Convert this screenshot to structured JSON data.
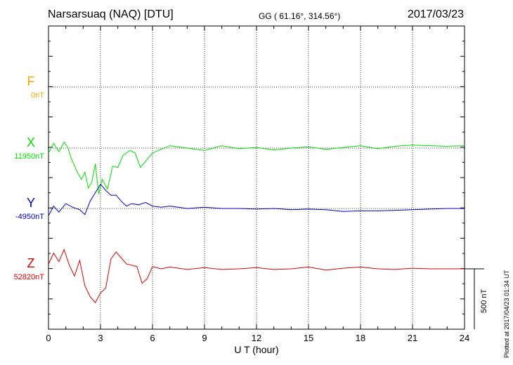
{
  "header": {
    "station": "Narsarsuaq (NAQ)  [DTU]",
    "coords": "GG ( 61.16°, 314.56°)",
    "date": "2017/03/23"
  },
  "plot_note": "Plotted at 2017/04/23 01:34 UT",
  "colors": {
    "F": "#ffa500",
    "X": "#00dd00",
    "Y": "#0000cc",
    "Z": "#dd0000",
    "grid": "#000000"
  },
  "chart_data": {
    "type": "line",
    "title": "Narsarsuaq (NAQ)  [DTU]",
    "xlabel": "U T (hour)",
    "xlim": [
      0,
      24
    ],
    "xticks": [
      "0",
      "3",
      "6",
      "9",
      "12",
      "15",
      "18",
      "21",
      "24"
    ],
    "scale_bar": "500 nT",
    "grid": true,
    "series": [
      {
        "name": "F",
        "baseline": "0nT",
        "color": "#ffa500",
        "x": [],
        "values": []
      },
      {
        "name": "X",
        "baseline": "11950nT",
        "color": "#00dd00",
        "x": [
          0,
          0.3,
          0.6,
          0.9,
          1.1,
          1.3,
          1.6,
          1.9,
          2.1,
          2.3,
          2.5,
          2.7,
          2.9,
          3.1,
          3.4,
          3.7,
          4.0,
          4.3,
          4.7,
          5.0,
          5.3,
          5.6,
          6.0,
          6.5,
          7.0,
          8.0,
          9.0,
          10.0,
          11.0,
          12.0,
          13.0,
          14.0,
          15.0,
          16.0,
          17.0,
          18.0,
          19.0,
          20.0,
          21.0,
          22.0,
          23.0,
          24.0
        ],
        "values": [
          -40,
          40,
          -30,
          50,
          10,
          -80,
          -180,
          -260,
          -200,
          -330,
          -280,
          -130,
          -380,
          -260,
          -340,
          -150,
          -160,
          -60,
          -20,
          -40,
          -160,
          -110,
          -40,
          -10,
          20,
          0,
          -20,
          20,
          -5,
          5,
          -15,
          0,
          10,
          -10,
          5,
          20,
          -5,
          15,
          25,
          20,
          15,
          20
        ]
      },
      {
        "name": "Y",
        "baseline": "-4950nT",
        "color": "#0000cc",
        "x": [
          0,
          0.3,
          0.6,
          1.0,
          1.4,
          1.8,
          2.1,
          2.4,
          2.7,
          3.0,
          3.3,
          3.6,
          3.9,
          4.2,
          4.5,
          4.8,
          5.2,
          5.6,
          6.0,
          6.5,
          7.0,
          8.0,
          9.0,
          10.0,
          11.0,
          12.0,
          13.0,
          14.0,
          15.0,
          16.0,
          17.0,
          18.0,
          19.0,
          20.0,
          21.0,
          22.0,
          23.0,
          24.0
        ],
        "values": [
          -60,
          20,
          -30,
          40,
          10,
          -10,
          -50,
          60,
          130,
          200,
          150,
          110,
          110,
          60,
          20,
          40,
          30,
          50,
          20,
          10,
          20,
          0,
          10,
          0,
          0,
          -5,
          0,
          -10,
          -5,
          -10,
          -25,
          -20,
          -20,
          -15,
          -10,
          -5,
          0,
          0
        ]
      },
      {
        "name": "Z",
        "baseline": "52820nT",
        "color": "#dd0000",
        "x": [
          0,
          0.3,
          0.6,
          0.9,
          1.2,
          1.5,
          1.8,
          2.1,
          2.4,
          2.7,
          3.0,
          3.3,
          3.6,
          3.9,
          4.2,
          4.5,
          4.8,
          5.1,
          5.4,
          5.7,
          6.0,
          6.5,
          7.0,
          8.0,
          9.0,
          10.0,
          11.0,
          12.0,
          13.0,
          14.0,
          15.0,
          16.0,
          17.0,
          18.0,
          19.0,
          20.0,
          21.0,
          22.0,
          23.0,
          24.0
        ],
        "values": [
          40,
          130,
          60,
          160,
          30,
          -60,
          70,
          -140,
          -230,
          -280,
          -200,
          -160,
          80,
          140,
          90,
          40,
          30,
          20,
          -120,
          -80,
          20,
          0,
          15,
          -5,
          10,
          -5,
          0,
          10,
          -5,
          0,
          15,
          -10,
          5,
          15,
          0,
          -5,
          5,
          0,
          0,
          0
        ]
      }
    ]
  }
}
